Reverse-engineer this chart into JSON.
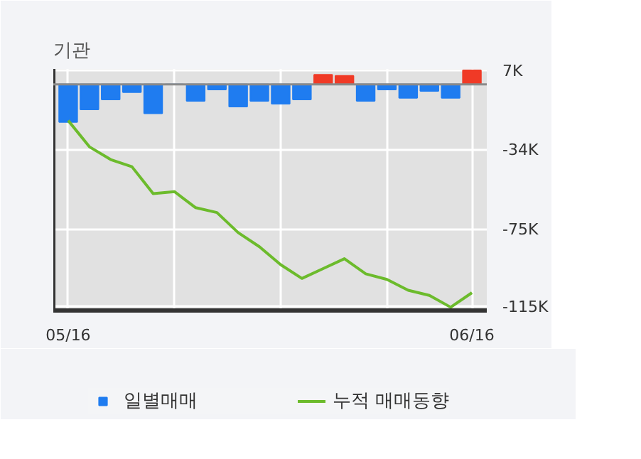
{
  "chart_data": {
    "type": "bar",
    "title": "기관",
    "categories": [
      "05/16",
      null,
      null,
      null,
      null,
      null,
      null,
      null,
      null,
      null,
      null,
      null,
      null,
      null,
      null,
      null,
      null,
      null,
      null,
      "06/16"
    ],
    "series": [
      {
        "name": "일별매매",
        "colors": [
          "#1f7cf0",
          "#1f7cf0",
          "#1f7cf0",
          "#1f7cf0",
          "#1f7cf0",
          "#1f7cf0",
          "#1f7cf0",
          "#1f7cf0",
          "#1f7cf0",
          "#1f7cf0",
          "#1f7cf0",
          "#1f7cf0",
          "#f03a26",
          "#f03a26",
          "#1f7cf0",
          "#1f7cf0",
          "#1f7cf0",
          "#1f7cf0",
          "#1f7cf0",
          "#f03a26"
        ],
        "values": [
          -19.5,
          -13,
          -7.8,
          -4,
          -15,
          0,
          -8.5,
          -2.7,
          -11.5,
          -8.5,
          -10,
          -7.8,
          5,
          4.4,
          -8.5,
          -2.7,
          -7,
          -3.4,
          -7,
          7.3
        ]
      },
      {
        "name": "누적 매매동향",
        "type": "line",
        "color": "#6cbb2c",
        "values": [
          -18.7,
          -32.3,
          -38.9,
          -42.6,
          -56.5,
          -55.5,
          -63.8,
          -66.3,
          -76.7,
          -84,
          -93.3,
          -100.4,
          -95.3,
          -90.2,
          -98,
          -100.9,
          -106.5,
          -109.2,
          -115.3,
          -107.8
        ]
      }
    ],
    "ylim": [
      -117,
      8
    ],
    "yticks": [
      {
        "value": 7,
        "label": "7K"
      },
      {
        "value": -34,
        "label": "-34K"
      },
      {
        "value": -75,
        "label": "-75K"
      },
      {
        "value": -115,
        "label": "-115K"
      }
    ],
    "grid": true,
    "legend": "bottom"
  }
}
